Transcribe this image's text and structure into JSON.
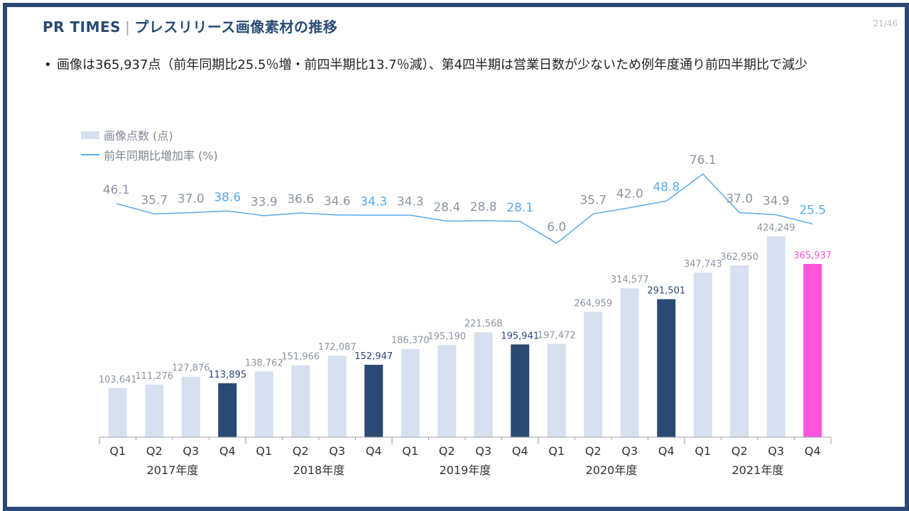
{
  "header": {
    "brand": "PR TIMES",
    "separator": "|",
    "title": "プレスリリース画像素材の推移",
    "page": "21/46"
  },
  "bullet": {
    "dot": "•",
    "text": "画像は365,937点（前年同期比25.5％増・前四半期比13.7％減）、第4四半期は営業日数が少ないため例年度通り前四半期比で減少"
  },
  "legend": {
    "bars_label": "画像点数 (点)",
    "line_label": "前年同期比増加率 (%)"
  },
  "colors": {
    "bar_light": "#d7e0ee",
    "bar_dark": "#2a4a74",
    "bar_highlight": "#ff55d8",
    "line": "#5aabeb",
    "label_gray": "#8c95a3",
    "label_blue": "#5aabeb"
  },
  "chart_data": {
    "type": "bar",
    "title": "プレスリリース画像素材の推移",
    "categories": [
      "Q1",
      "Q2",
      "Q3",
      "Q4",
      "Q1",
      "Q2",
      "Q3",
      "Q4",
      "Q1",
      "Q2",
      "Q3",
      "Q4",
      "Q1",
      "Q2",
      "Q3",
      "Q4",
      "Q1",
      "Q2",
      "Q3",
      "Q4"
    ],
    "groups": [
      "2017年度",
      "2018年度",
      "2019年度",
      "2020年度",
      "2021年度"
    ],
    "series": [
      {
        "name": "画像点数 (点)",
        "type": "bar",
        "values": [
          103641,
          111276,
          127876,
          113895,
          138762,
          151966,
          172087,
          152947,
          186370,
          195190,
          221568,
          195941,
          197472,
          264959,
          314577,
          291501,
          347743,
          362950,
          424249,
          365937
        ],
        "labels": [
          "103,641",
          "111,276",
          "127,876",
          "113,895",
          "138,762",
          "151,966",
          "172,087",
          "152,947",
          "186,370",
          "195,190",
          "221,568",
          "195,941",
          "197,472",
          "264,959",
          "314,577",
          "291,501",
          "347,743",
          "362,950",
          "424,249",
          "365,937"
        ]
      },
      {
        "name": "前年同期比増加率 (%)",
        "type": "line",
        "values": [
          46.1,
          35.7,
          37.0,
          38.6,
          33.9,
          36.6,
          34.6,
          34.3,
          34.3,
          28.4,
          28.8,
          28.1,
          6.0,
          35.7,
          42.0,
          48.8,
          76.1,
          37.0,
          34.9,
          25.5
        ],
        "labels": [
          "46.1",
          "35.7",
          "37.0",
          "38.6",
          "33.9",
          "36.6",
          "34.6",
          "34.3",
          "34.3",
          "28.4",
          "28.8",
          "28.1",
          "6.0",
          "35.7",
          "42.0",
          "48.8",
          "76.1",
          "37.0",
          "34.9",
          "25.5"
        ]
      }
    ],
    "bar_ylim": [
      0,
      440000
    ],
    "line_ylim": [
      0,
      80
    ],
    "xlabel": "",
    "ylabel": ""
  }
}
